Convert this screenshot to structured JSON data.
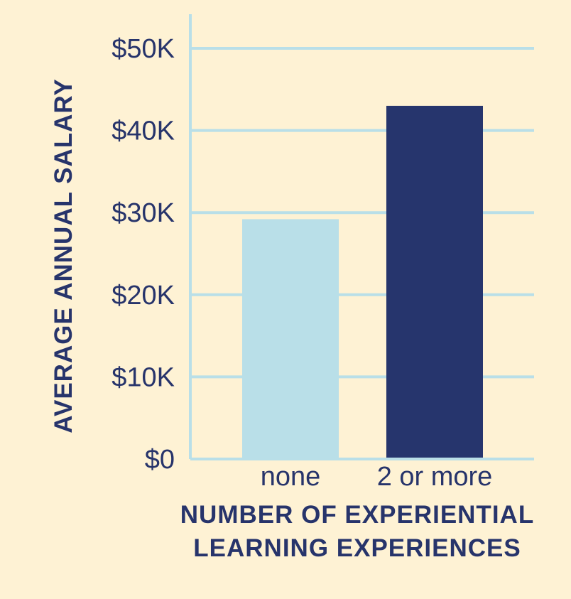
{
  "chart_data": {
    "type": "bar",
    "categories": [
      "none",
      "2 or more"
    ],
    "values": [
      29200,
      43000
    ],
    "ylim": [
      0,
      50000
    ],
    "yticks": [
      0,
      10000,
      20000,
      30000,
      40000,
      50000
    ],
    "ytick_labels": [
      "$0",
      "$10K",
      "$20K",
      "$30K",
      "$40K",
      "$50K"
    ],
    "ylabel": "AVERAGE ANNUAL SALARY",
    "xlabel_lines": [
      "NUMBER OF EXPERIENTIAL",
      "LEARNING EXPERIENCES"
    ],
    "grid": true,
    "bar_colors": [
      "#B9DFE8",
      "#26356D"
    ],
    "grid_color": "#B9DFE8",
    "text_color": "#27346B",
    "background": "#FEF2D4"
  }
}
